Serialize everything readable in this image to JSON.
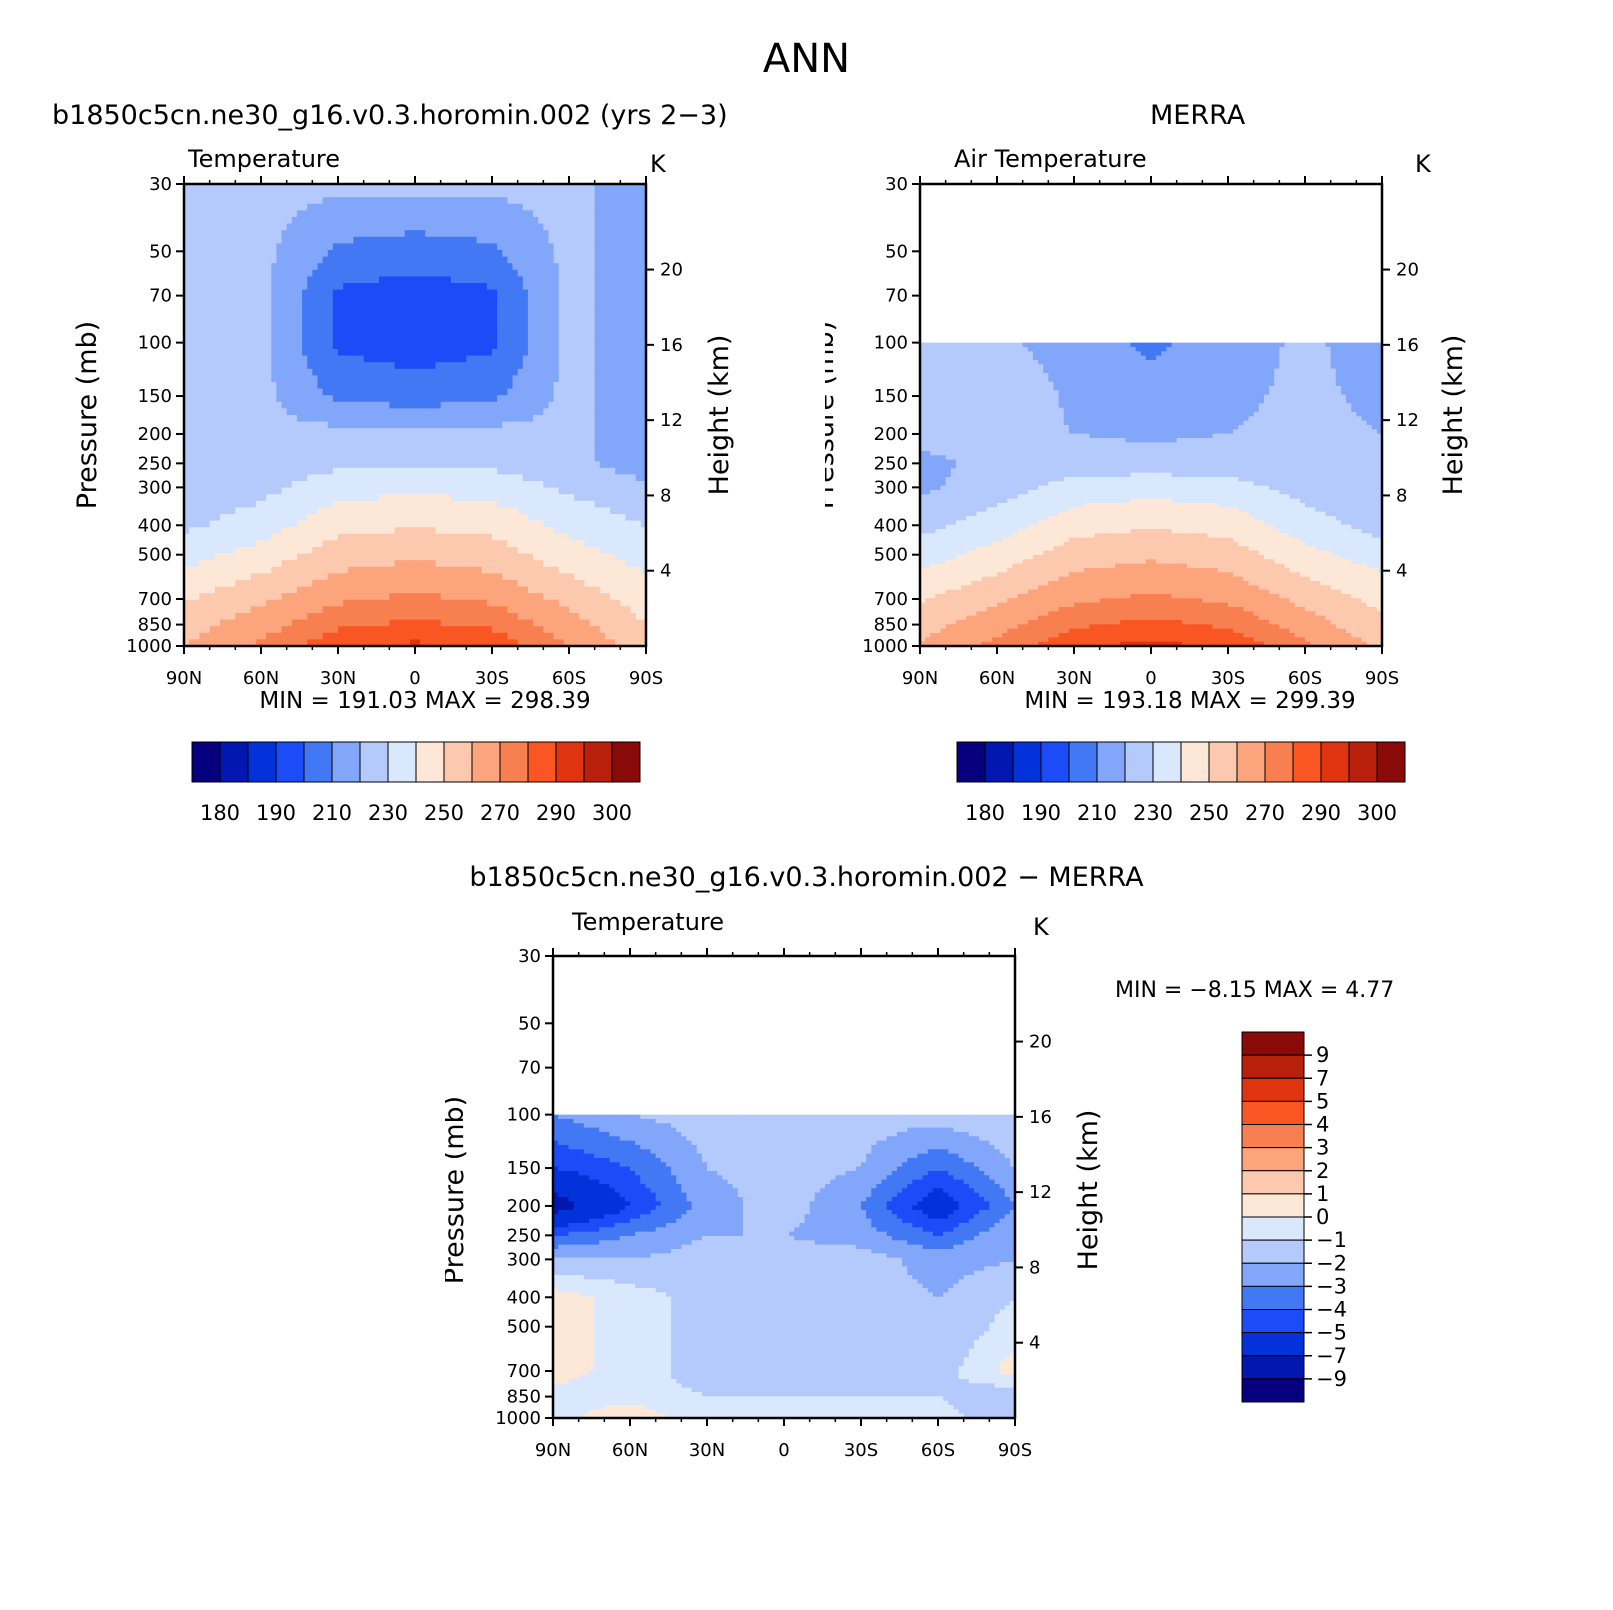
{
  "season": "ANN",
  "colors": {
    "temp": [
      "#06007e",
      "#0216b0",
      "#0432da",
      "#1c4cf8",
      "#4278f4",
      "#82a6fa",
      "#b4cafc",
      "#d9e8fd",
      "#fde8d8",
      "#fcc8ae",
      "#fca47c",
      "#f88050",
      "#fa5624",
      "#e03410",
      "#b8200b",
      "#8a0a0a"
    ],
    "diff": [
      "#06007e",
      "#0216b0",
      "#0432da",
      "#1c4cf8",
      "#4278f4",
      "#82a6fa",
      "#b4cafc",
      "#d9e8fd",
      "#fde8d8",
      "#fcc8ae",
      "#fca47c",
      "#f88050",
      "#fa5624",
      "#e03410",
      "#b8200b",
      "#8a0a0a"
    ]
  },
  "panels": [
    {
      "title": "b1850c5cn.ne30_g16.v0.3.horomin.002 (yrs 2−3)",
      "subtitle": "Temperature",
      "units": "K",
      "ylabel": "Pressure (mb)",
      "y2label": "Height (km)",
      "stats": "MIN = 191.03   MAX = 298.39",
      "show_right_axis": true
    },
    {
      "title": "MERRA",
      "subtitle": "Air Temperature",
      "units": "K",
      "ylabel": "Pressure (mb)",
      "y2label": "Height (km)",
      "stats": "MIN = 193.18   MAX = 299.39",
      "show_right_axis": true
    },
    {
      "title": "b1850c5cn.ne30_g16.v0.3.horomin.002 − MERRA",
      "subtitle": "Temperature",
      "units": "K",
      "ylabel": "Pressure (mb)",
      "y2label": "Height (km)",
      "stats": "MIN =    −8.15    MAX =     4.77",
      "show_right_axis": true
    }
  ],
  "axes": {
    "x_ticks": [
      "90N",
      "60N",
      "30N",
      "0",
      "30S",
      "60S",
      "90S"
    ],
    "p_ticks": [
      "30",
      "50",
      "70",
      "100",
      "150",
      "200",
      "250",
      "300",
      "400",
      "500",
      "700",
      "850",
      "1000"
    ],
    "z_ticks": [
      "20",
      "16",
      "12",
      "8",
      "4"
    ]
  },
  "temp_colorbar": {
    "tick_labels": [
      "180",
      "190",
      "210",
      "230",
      "250",
      "270",
      "290",
      "300"
    ]
  },
  "diff_colorbar": {
    "tick_labels": [
      "9",
      "7",
      "5",
      "4",
      "3",
      "2",
      "1",
      "0",
      "−1",
      "−2",
      "−3",
      "−4",
      "−5",
      "−7",
      "−9"
    ]
  },
  "chart_data": [
    {
      "type": "heatmap",
      "title": "b1850c5cn.ne30_g16.v0.3.horomin.002 (yrs 2−3)",
      "variable": "Temperature",
      "units": "K",
      "x": [
        90,
        60,
        30,
        0,
        -30,
        -60,
        -90
      ],
      "y": [
        30,
        50,
        70,
        100,
        150,
        200,
        250,
        300,
        400,
        500,
        700,
        850,
        1000
      ],
      "levels": [
        180,
        185,
        190,
        200,
        210,
        220,
        230,
        240,
        250,
        260,
        270,
        280,
        290,
        295,
        300
      ],
      "values": [
        [
          223,
          223,
          223,
          223,
          223,
          223,
          213
        ],
        [
          223,
          223,
          208,
          205,
          208,
          223,
          213
        ],
        [
          223,
          223,
          198,
          195,
          198,
          223,
          213
        ],
        [
          223,
          223,
          198,
          195,
          198,
          223,
          213
        ],
        [
          223,
          223,
          208,
          205,
          208,
          223,
          213
        ],
        [
          223,
          223,
          223,
          223,
          223,
          223,
          213
        ],
        [
          223,
          223,
          228,
          229,
          228,
          223,
          215
        ],
        [
          222,
          227,
          236,
          238,
          236,
          228,
          222
        ],
        [
          228,
          235,
          247,
          249,
          247,
          237,
          230
        ],
        [
          236,
          244,
          255,
          258,
          255,
          244,
          236
        ],
        [
          249,
          258,
          268,
          272,
          268,
          257,
          245
        ],
        [
          256,
          265,
          278,
          282,
          278,
          264,
          250
        ],
        [
          260,
          272,
          287,
          292,
          287,
          270,
          255
        ]
      ],
      "min": 191.03,
      "max": 298.39
    },
    {
      "type": "heatmap",
      "title": "MERRA",
      "variable": "Air Temperature",
      "units": "K",
      "x": [
        90,
        60,
        30,
        0,
        -30,
        -60,
        -90
      ],
      "y": [
        100,
        150,
        200,
        250,
        300,
        400,
        500,
        700,
        850,
        1000
      ],
      "levels": [
        180,
        185,
        190,
        200,
        210,
        220,
        230,
        240,
        250,
        260,
        270,
        280,
        290,
        295,
        300
      ],
      "values": [
        [
          222,
          222,
          215,
          208,
          215,
          222,
          215
        ],
        [
          227,
          229,
          218,
          213,
          218,
          222,
          218
        ],
        [
          223,
          223,
          220,
          218,
          220,
          222,
          220
        ],
        [
          218,
          222,
          225,
          225,
          225,
          222,
          220
        ],
        [
          218,
          225,
          234,
          236,
          234,
          226,
          220
        ],
        [
          227,
          235,
          246,
          249,
          246,
          235,
          226
        ],
        [
          235,
          244,
          255,
          258,
          255,
          243,
          235
        ],
        [
          249,
          258,
          268,
          272,
          268,
          257,
          247
        ],
        [
          256,
          266,
          278,
          283,
          278,
          265,
          252
        ],
        [
          261,
          273,
          288,
          293,
          288,
          272,
          258
        ]
      ],
      "min": 193.18,
      "max": 299.39
    },
    {
      "type": "heatmap",
      "title": "b1850c5cn.ne30_g16.v0.3.horomin.002 − MERRA",
      "variable": "Temperature",
      "units": "K",
      "x": [
        90,
        60,
        30,
        0,
        -30,
        -60,
        -90
      ],
      "y": [
        100,
        150,
        200,
        250,
        300,
        400,
        500,
        700,
        850,
        1000
      ],
      "levels": [
        -9,
        -7,
        -5,
        -4,
        -3,
        -2,
        -1,
        0,
        1,
        2,
        3,
        4,
        5,
        7,
        9
      ],
      "values": [
        [
          -3,
          -2,
          -1.5,
          -1.5,
          -1.5,
          -1.5,
          -1
        ],
        [
          -5,
          -4,
          -2,
          -1.5,
          -2,
          -4,
          -2
        ],
        [
          -8,
          -5,
          -2.5,
          -1.5,
          -3,
          -6,
          -3
        ],
        [
          -4,
          -3,
          -2,
          -2,
          -2.5,
          -4,
          -2
        ],
        [
          -2,
          -2,
          -1.5,
          -1.5,
          -1.5,
          -2.5,
          -2
        ],
        [
          0.5,
          -0.5,
          -1.5,
          -1.5,
          -1.5,
          -2,
          -1
        ],
        [
          0.5,
          -0.5,
          -1.5,
          -1.5,
          -1.5,
          -2,
          -0.5
        ],
        [
          0.5,
          -0.5,
          -1.5,
          -1.5,
          -1.5,
          -1.5,
          0.5
        ],
        [
          -0.5,
          -0.5,
          -1,
          -1,
          -1,
          -1,
          -2
        ],
        [
          -0.5,
          1,
          -1,
          -1,
          -1,
          -0.5,
          -2
        ]
      ],
      "min": -8.15,
      "max": 4.77
    }
  ]
}
